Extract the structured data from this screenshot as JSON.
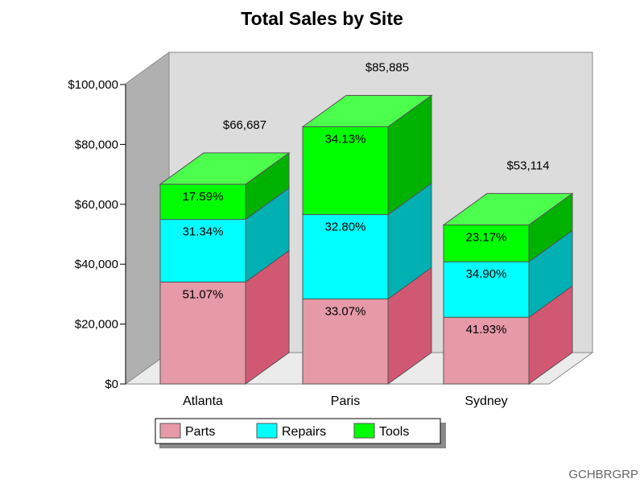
{
  "chart_data": {
    "type": "bar",
    "stacked": true,
    "three_d": true,
    "title": "Total Sales by Site",
    "xlabel": "",
    "ylabel": "",
    "ylim": [
      0,
      100000
    ],
    "yticks": [
      0,
      20000,
      40000,
      60000,
      80000,
      100000
    ],
    "ytick_labels": [
      "$0",
      "$20,000",
      "$40,000",
      "$60,000",
      "$80,000",
      "$100,000"
    ],
    "categories": [
      "Atlanta",
      "Paris",
      "Sydney"
    ],
    "totals": [
      66687,
      85885,
      53114
    ],
    "total_labels": [
      "$66,687",
      "$85,885",
      "$53,114"
    ],
    "series": [
      {
        "name": "Parts",
        "color": "#e699a6",
        "side_color": "#d15873",
        "percents": [
          51.07,
          33.07,
          41.93
        ],
        "labels": [
          "51.07%",
          "33.07%",
          "41.93%"
        ]
      },
      {
        "name": "Repairs",
        "color": "#00ffff",
        "side_color": "#00b0b2",
        "percents": [
          31.34,
          32.8,
          34.9
        ],
        "labels": [
          "31.34%",
          "32.80%",
          "34.90%"
        ]
      },
      {
        "name": "Tools",
        "color": "#00ff00",
        "side_color": "#00b200",
        "percents": [
          17.59,
          34.13,
          23.17
        ],
        "labels": [
          "17.59%",
          "34.13%",
          "23.17%"
        ]
      }
    ],
    "legend_position": "bottom",
    "colors": {
      "back_wall": "#dcdcdc",
      "left_wall": "#b0b0b0",
      "floor": "#ebebeb"
    }
  },
  "footnote": "GCHBRGRP"
}
